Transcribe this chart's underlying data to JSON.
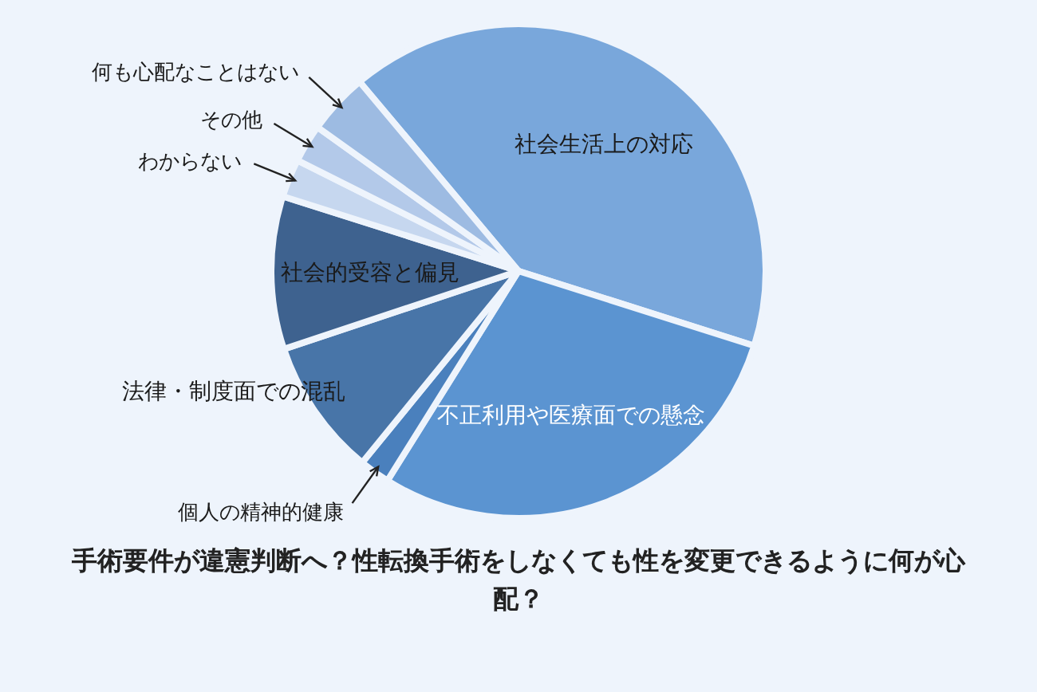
{
  "chart_data": {
    "type": "pie",
    "title": "手術要件が違憲判断へ？性転換手術をしなくても性を変更できるように何が心配？",
    "categories": [
      "社会生活上の対応",
      "不正利用や医療面での懸念",
      "個人の精神的健康",
      "法律・制度面での混乱",
      "社会的受容と偏見",
      "わからない",
      "その他",
      "何も心配なことはない"
    ],
    "values": [
      41,
      29,
      2,
      9,
      10,
      2.5,
      2.5,
      4
    ],
    "colors": [
      "#79a7db",
      "#5b94d1",
      "#4a80bd",
      "#4875a8",
      "#3e628f",
      "#c6d7ef",
      "#b3c9e9",
      "#9dbbe2"
    ]
  }
}
